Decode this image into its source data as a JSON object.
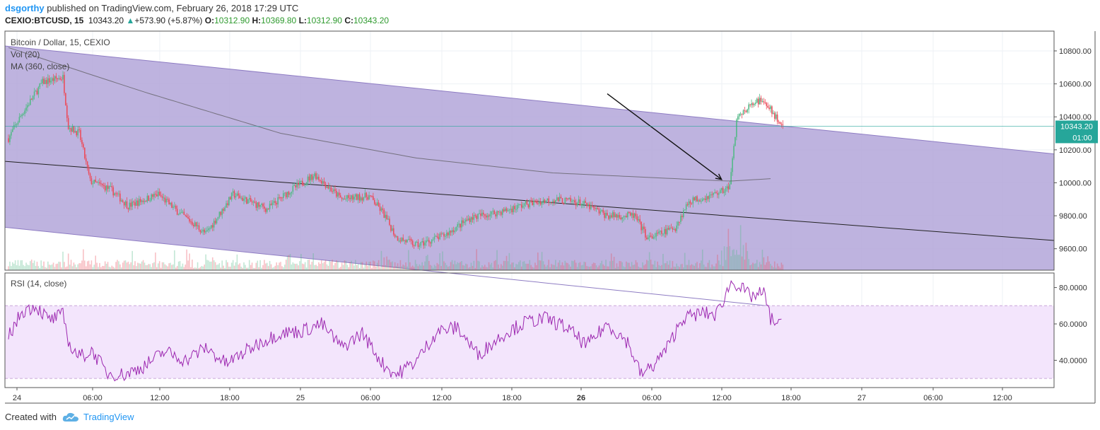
{
  "header": {
    "user": "dsgorthy",
    "published": "published on TradingView.com, February 26, 2018 17:29 UTC",
    "symbol": "CEXIO:BTCUSD, 15",
    "price": "10343.20",
    "change": "+573.90 (+5.87%)",
    "o_label": "O:",
    "o": "10312.90",
    "h_label": "H:",
    "h": "10369.80",
    "l_label": "L:",
    "l": "10312.90",
    "c_label": "C:",
    "c": "10343.20"
  },
  "legend": {
    "title": "Bitcoin / Dollar, 15, CEXIO",
    "vol": "Vol (20)",
    "ma": "MA (360, close)",
    "rsi": "RSI (14, close)"
  },
  "price_tag": {
    "price": "10343.20",
    "countdown": "01:00"
  },
  "footer": {
    "created": "Created with",
    "brand": "TradingView"
  },
  "colors": {
    "channel": "#b3a6d9",
    "up": "#53b987",
    "down": "#eb4d5c",
    "rsi_line": "#9c27b0",
    "rsi_band": "#f3e5fc",
    "price_tag": "#26a69a"
  },
  "chart_data": {
    "type": "candlestick",
    "price_axis": {
      "ticks": [
        9600,
        9800,
        10000,
        10200,
        10400,
        10600,
        10800
      ],
      "tick_labels": [
        "9600.00",
        "9800.00",
        "10000.00",
        "10200.00",
        "10400.00",
        "10600.00",
        "10800.00"
      ],
      "range": [
        9470,
        10920
      ]
    },
    "rsi_axis": {
      "ticks": [
        40,
        60,
        80
      ],
      "tick_labels": [
        "40.0000",
        "60.0000",
        "80.0000"
      ],
      "band": [
        30,
        70
      ],
      "range": [
        25,
        88
      ]
    },
    "time_axis": {
      "labels": [
        "24",
        "06:00",
        "12:00",
        "18:00",
        "25",
        "06:00",
        "12:00",
        "18:00",
        "26",
        "06:00",
        "12:00",
        "18:00",
        "27",
        "06:00",
        "12:00"
      ],
      "bold": [
        "26"
      ]
    },
    "close_keypoints": [
      [
        0,
        10270
      ],
      [
        10,
        10420
      ],
      [
        25,
        10610
      ],
      [
        40,
        10640
      ],
      [
        44,
        10340
      ],
      [
        52,
        10300
      ],
      [
        60,
        10010
      ],
      [
        75,
        9960
      ],
      [
        88,
        9860
      ],
      [
        110,
        9930
      ],
      [
        125,
        9820
      ],
      [
        135,
        9760
      ],
      [
        145,
        9690
      ],
      [
        165,
        9930
      ],
      [
        190,
        9840
      ],
      [
        205,
        9940
      ],
      [
        225,
        10050
      ],
      [
        245,
        9900
      ],
      [
        265,
        9920
      ],
      [
        275,
        9820
      ],
      [
        285,
        9670
      ],
      [
        300,
        9620
      ],
      [
        320,
        9680
      ],
      [
        340,
        9790
      ],
      [
        365,
        9830
      ],
      [
        380,
        9870
      ],
      [
        400,
        9900
      ],
      [
        420,
        9880
      ],
      [
        440,
        9800
      ],
      [
        460,
        9800
      ],
      [
        470,
        9660
      ],
      [
        490,
        9730
      ],
      [
        500,
        9890
      ],
      [
        515,
        9920
      ],
      [
        530,
        9970
      ],
      [
        535,
        10380
      ],
      [
        545,
        10470
      ],
      [
        555,
        10510
      ],
      [
        568,
        10340
      ]
    ],
    "ma_points": [
      [
        0,
        10820
      ],
      [
        100,
        10550
      ],
      [
        200,
        10300
      ],
      [
        300,
        10150
      ],
      [
        400,
        10060
      ],
      [
        490,
        10025
      ],
      [
        530,
        10010
      ],
      [
        560,
        10025
      ]
    ],
    "channel": {
      "upper": [
        [
          0,
          10830
        ],
        [
          760,
          10175
        ]
      ],
      "lower": [
        [
          0,
          9730
        ],
        [
          760,
          9075
        ]
      ],
      "mid": [
        [
          0,
          10130
        ],
        [
          760,
          9650
        ]
      ]
    },
    "arrow": {
      "from": [
        440,
        10540
      ],
      "to": [
        524,
        10020
      ]
    },
    "rsi_keypoints": [
      [
        0,
        53
      ],
      [
        10,
        67
      ],
      [
        20,
        70
      ],
      [
        30,
        62
      ],
      [
        40,
        65
      ],
      [
        45,
        48
      ],
      [
        52,
        42
      ],
      [
        62,
        45
      ],
      [
        72,
        33
      ],
      [
        85,
        32
      ],
      [
        100,
        37
      ],
      [
        115,
        45
      ],
      [
        130,
        40
      ],
      [
        145,
        47
      ],
      [
        160,
        38
      ],
      [
        185,
        50
      ],
      [
        200,
        55
      ],
      [
        215,
        56
      ],
      [
        230,
        60
      ],
      [
        245,
        47
      ],
      [
        260,
        55
      ],
      [
        275,
        38
      ],
      [
        285,
        32
      ],
      [
        300,
        40
      ],
      [
        315,
        56
      ],
      [
        330,
        58
      ],
      [
        345,
        43
      ],
      [
        365,
        55
      ],
      [
        380,
        61
      ],
      [
        395,
        63
      ],
      [
        410,
        58
      ],
      [
        425,
        48
      ],
      [
        440,
        60
      ],
      [
        455,
        50
      ],
      [
        465,
        32
      ],
      [
        475,
        38
      ],
      [
        485,
        48
      ],
      [
        495,
        63
      ],
      [
        510,
        66
      ],
      [
        520,
        65
      ],
      [
        532,
        84
      ],
      [
        545,
        75
      ],
      [
        555,
        77
      ],
      [
        560,
        63
      ],
      [
        568,
        59
      ]
    ]
  }
}
